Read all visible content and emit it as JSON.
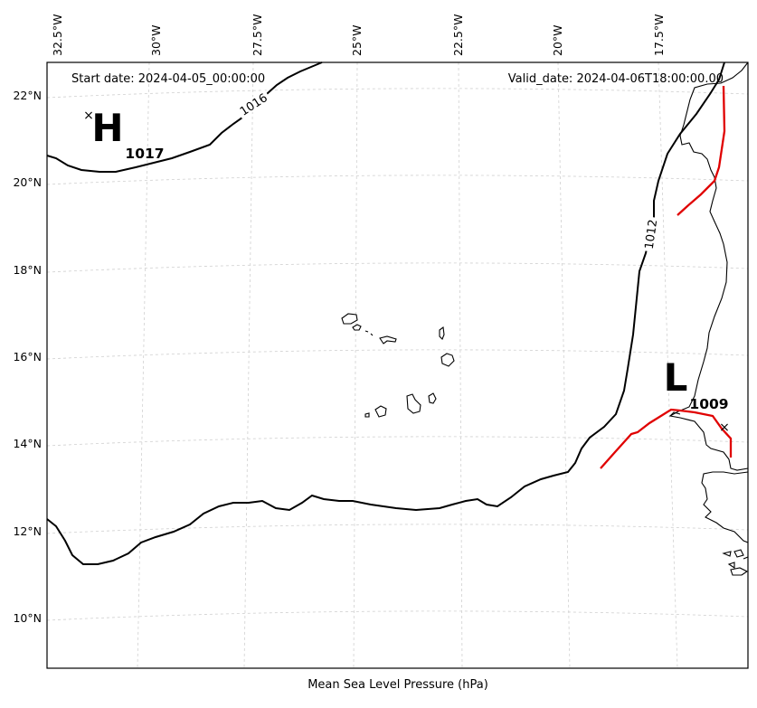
{
  "header": {
    "start_date": "Start date: 2024-04-05_00:00:00",
    "valid_date": "Valid_date: 2024-04-06T18:00:00.00"
  },
  "caption": "Mean Sea Level Pressure (hPa)",
  "axes": {
    "lon_ticks": [
      "32.5°W",
      "30°W",
      "27.5°W",
      "25°W",
      "22.5°W",
      "20°W",
      "17.5°W"
    ],
    "lat_ticks": [
      "22°N",
      "20°N",
      "18°N",
      "16°N",
      "14°N",
      "12°N",
      "10°N"
    ]
  },
  "isobars": [
    {
      "value": 1016,
      "label": "1016"
    },
    {
      "value": 1012,
      "label": "1012"
    }
  ],
  "pressure_centers": [
    {
      "type": "H",
      "letter": "H",
      "value": "1017"
    },
    {
      "type": "L",
      "letter": "L",
      "value": "1009"
    }
  ],
  "colors": {
    "isobar": "#000000",
    "trough": "#e00000",
    "grid": "#d0d0d0"
  }
}
